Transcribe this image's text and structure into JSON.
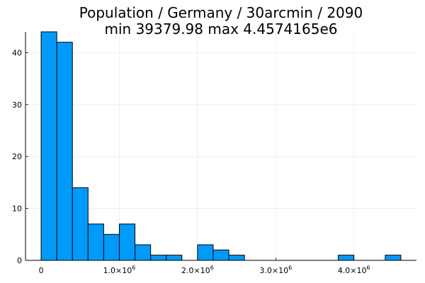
{
  "chart_data": {
    "type": "bar",
    "title_line1": "Population / Germany / 30arcmin / 2090",
    "title_line2": "min 39379.98  max 4.4574165e6",
    "bin_width": 200000,
    "bins": [
      {
        "start": 0,
        "count": 44
      },
      {
        "start": 200000,
        "count": 42
      },
      {
        "start": 400000,
        "count": 14
      },
      {
        "start": 600000,
        "count": 7
      },
      {
        "start": 800000,
        "count": 5
      },
      {
        "start": 1000000,
        "count": 7
      },
      {
        "start": 1200000,
        "count": 3
      },
      {
        "start": 1400000,
        "count": 1
      },
      {
        "start": 1600000,
        "count": 1
      },
      {
        "start": 1800000,
        "count": 0
      },
      {
        "start": 2000000,
        "count": 3
      },
      {
        "start": 2200000,
        "count": 2
      },
      {
        "start": 2400000,
        "count": 1
      },
      {
        "start": 2600000,
        "count": 0
      },
      {
        "start": 2800000,
        "count": 0
      },
      {
        "start": 3000000,
        "count": 0
      },
      {
        "start": 3200000,
        "count": 0
      },
      {
        "start": 3400000,
        "count": 0
      },
      {
        "start": 3600000,
        "count": 0
      },
      {
        "start": 3800000,
        "count": 1
      },
      {
        "start": 4000000,
        "count": 0
      },
      {
        "start": 4200000,
        "count": 0
      },
      {
        "start": 4400000,
        "count": 1
      }
    ],
    "xlim": [
      -200000,
      4800000
    ],
    "ylim": [
      0,
      44
    ],
    "x_ticks": [
      {
        "value": 0,
        "mantissa": "0",
        "exponent": ""
      },
      {
        "value": 1000000,
        "mantissa": "1.0×10",
        "exponent": "6"
      },
      {
        "value": 2000000,
        "mantissa": "2.0×10",
        "exponent": "6"
      },
      {
        "value": 3000000,
        "mantissa": "3.0×10",
        "exponent": "6"
      },
      {
        "value": 4000000,
        "mantissa": "4.0×10",
        "exponent": "6"
      }
    ],
    "y_ticks": [
      0,
      10,
      20,
      30,
      40
    ],
    "grid": true,
    "legend": "none",
    "bar_color": "#009AFA",
    "edge_color": "#000000"
  }
}
